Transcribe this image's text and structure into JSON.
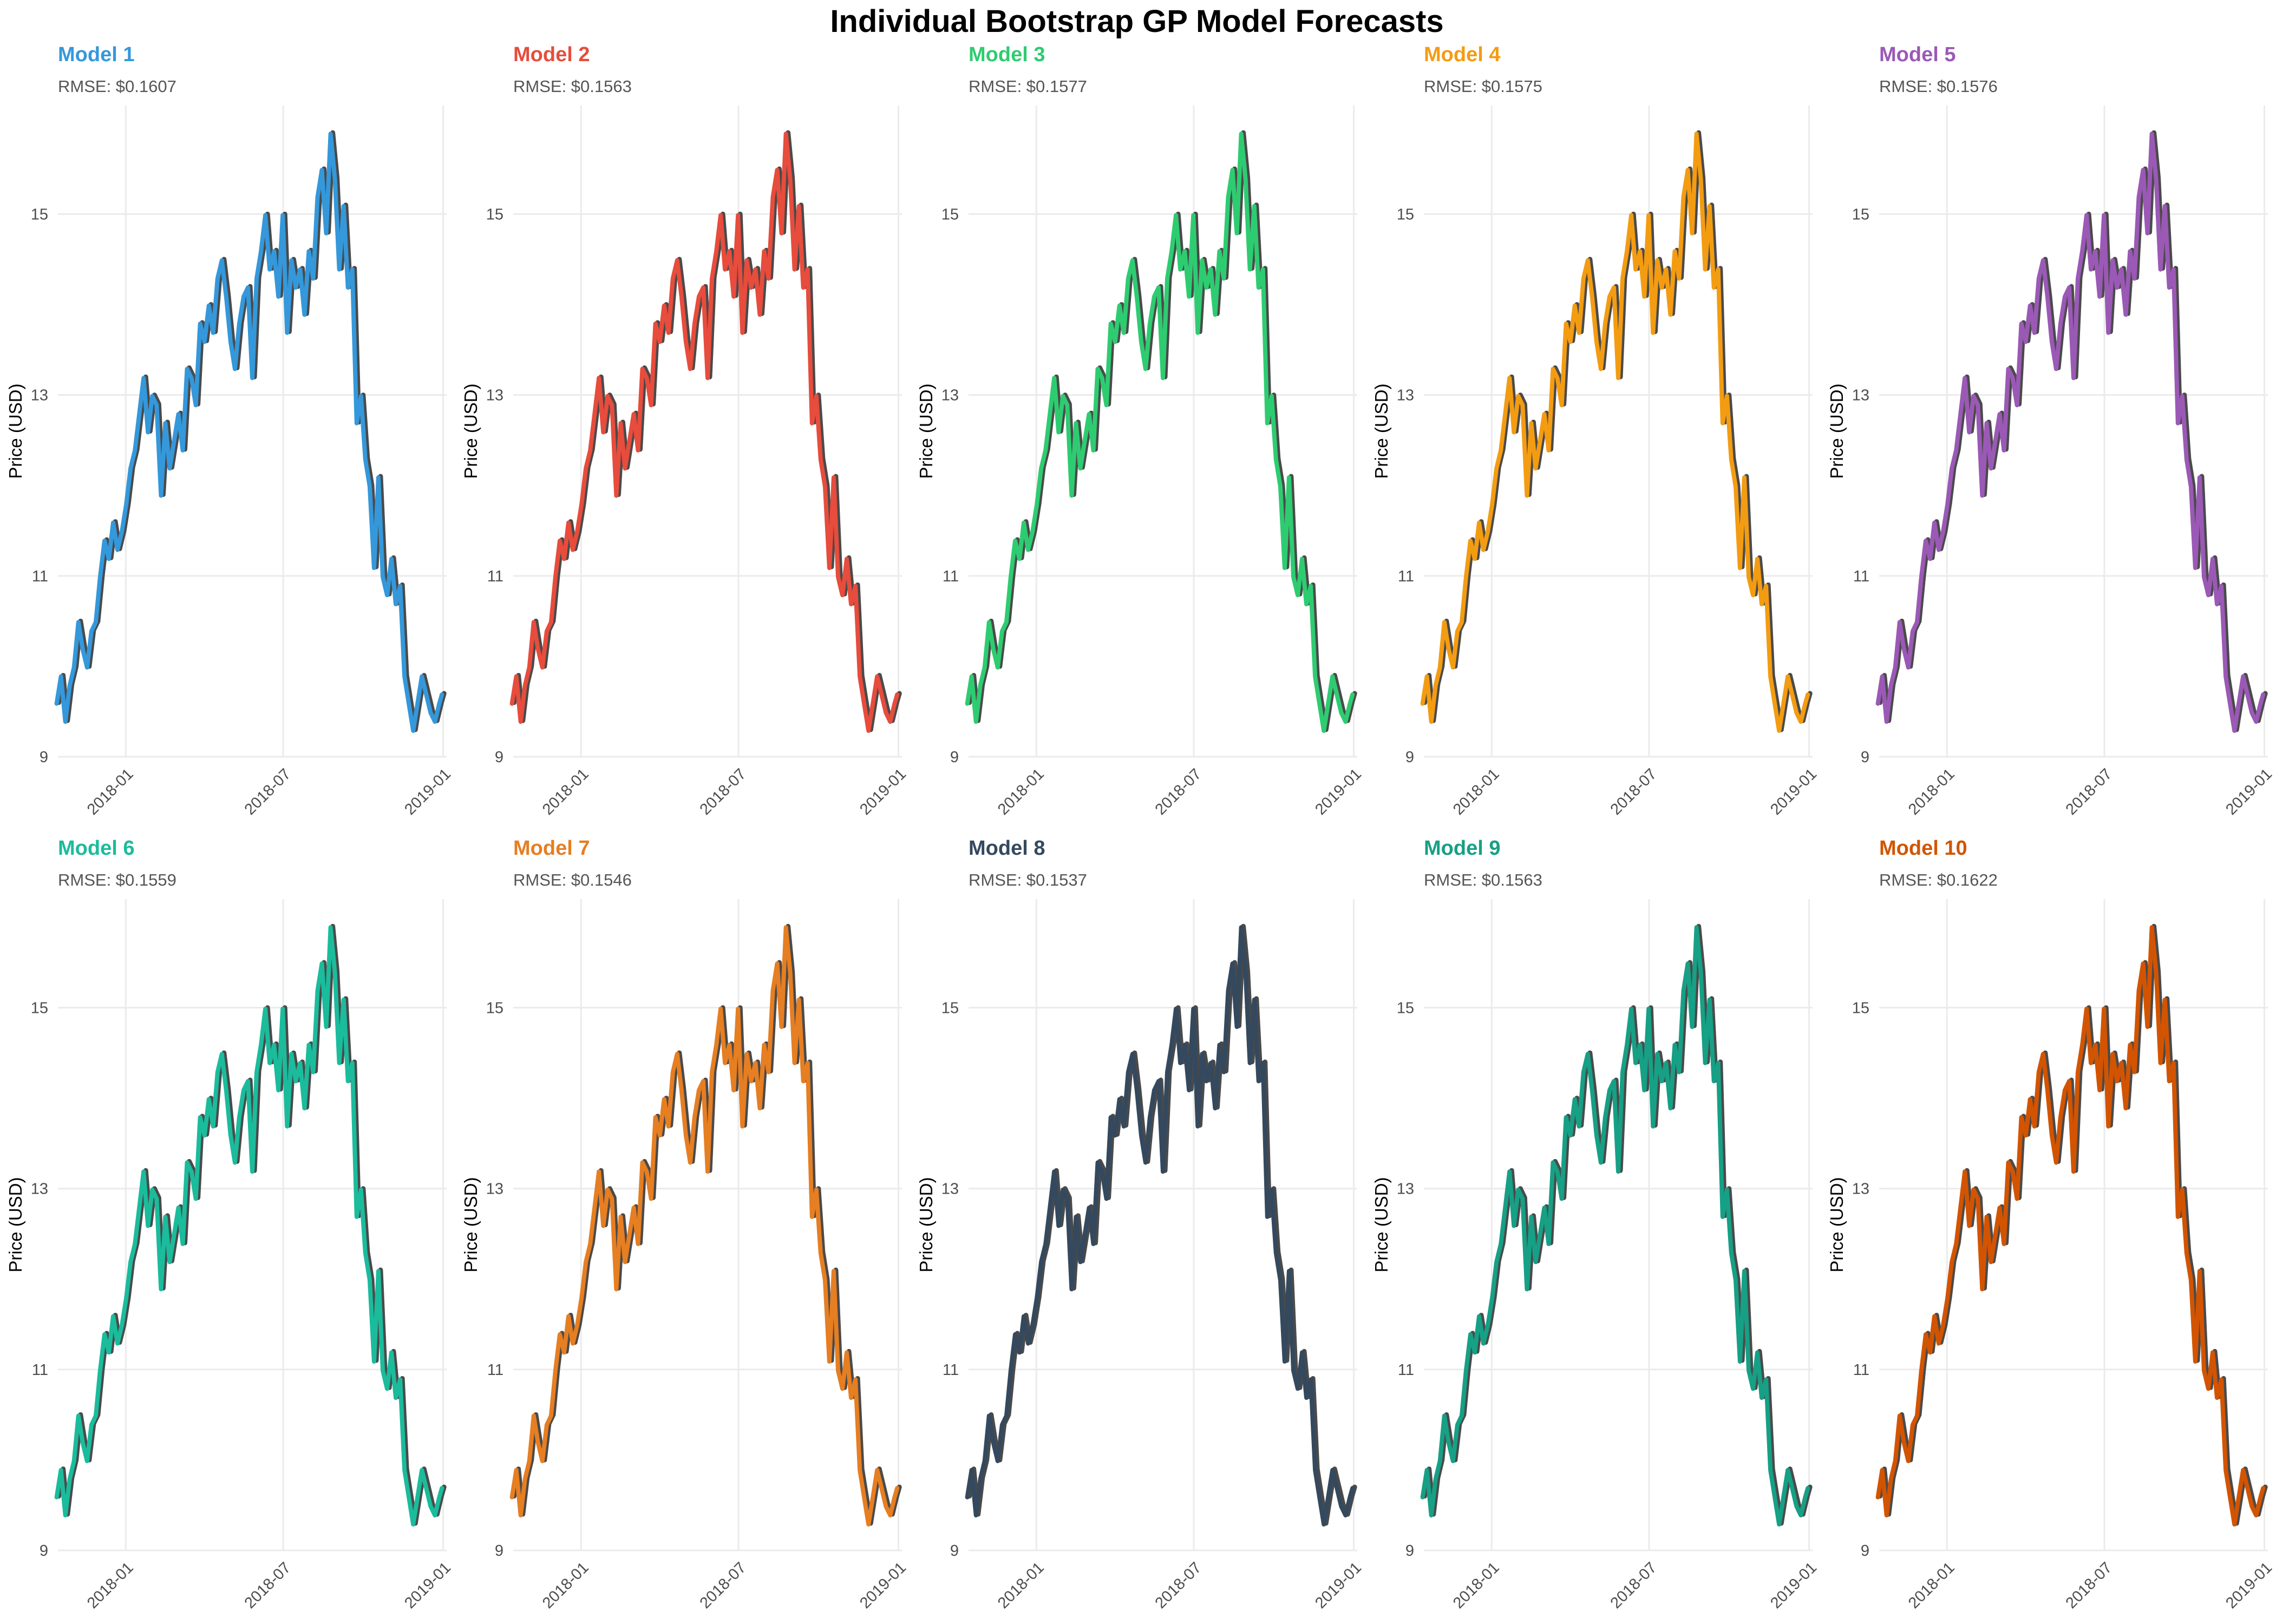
{
  "title": "Individual Bootstrap GP Model Forecasts",
  "actual_color": "#4a4a4a",
  "chart_data": {
    "type": "line",
    "ylabel": "Price (USD)",
    "xlabel": "",
    "x_tick_labels": [
      "2018-01",
      "2018-07",
      "2019-01"
    ],
    "x_ticks": [
      "2018-01-01",
      "2018-07-01",
      "2019-01-01"
    ],
    "xlim": [
      "2017-10-15",
      "2019-01-05"
    ],
    "y_ticks": [
      9,
      11,
      13,
      15
    ],
    "ylim": [
      9,
      16.2
    ],
    "grid": true,
    "actual_series": {
      "dates": [
        "2017-10-16",
        "2017-10-21",
        "2017-10-26",
        "2017-10-31",
        "2017-11-05",
        "2017-11-10",
        "2017-11-15",
        "2017-11-20",
        "2017-11-25",
        "2017-11-30",
        "2017-12-05",
        "2017-12-10",
        "2017-12-15",
        "2017-12-20",
        "2017-12-25",
        "2017-12-30",
        "2018-01-04",
        "2018-01-09",
        "2018-01-14",
        "2018-01-19",
        "2018-01-24",
        "2018-01-29",
        "2018-02-03",
        "2018-02-08",
        "2018-02-13",
        "2018-02-18",
        "2018-02-23",
        "2018-02-28",
        "2018-03-05",
        "2018-03-10",
        "2018-03-15",
        "2018-03-20",
        "2018-03-25",
        "2018-03-30",
        "2018-04-04",
        "2018-04-09",
        "2018-04-14",
        "2018-04-19",
        "2018-04-24",
        "2018-04-29",
        "2018-05-04",
        "2018-05-09",
        "2018-05-14",
        "2018-05-19",
        "2018-05-24",
        "2018-05-29",
        "2018-06-03",
        "2018-06-08",
        "2018-06-13",
        "2018-06-18",
        "2018-06-23",
        "2018-06-28",
        "2018-07-03",
        "2018-07-08",
        "2018-07-13",
        "2018-07-18",
        "2018-07-23",
        "2018-07-28",
        "2018-08-02",
        "2018-08-07",
        "2018-08-12",
        "2018-08-17",
        "2018-08-22",
        "2018-08-27",
        "2018-09-01",
        "2018-09-06",
        "2018-09-11",
        "2018-09-16",
        "2018-09-21",
        "2018-09-26",
        "2018-10-01",
        "2018-10-06",
        "2018-10-11",
        "2018-10-16",
        "2018-10-21",
        "2018-10-26",
        "2018-10-31",
        "2018-11-05",
        "2018-11-10",
        "2018-11-15",
        "2018-11-20",
        "2018-11-25",
        "2018-11-30",
        "2018-12-05",
        "2018-12-10",
        "2018-12-15",
        "2018-12-20",
        "2018-12-25",
        "2018-12-30",
        "2019-01-02"
      ],
      "values": [
        9.6,
        9.9,
        9.4,
        9.8,
        10.0,
        10.5,
        10.2,
        10.0,
        10.4,
        10.5,
        11.0,
        11.4,
        11.2,
        11.6,
        11.3,
        11.5,
        11.8,
        12.2,
        12.4,
        12.8,
        13.2,
        12.6,
        13.0,
        12.9,
        11.9,
        12.7,
        12.2,
        12.5,
        12.8,
        12.4,
        13.3,
        13.2,
        12.9,
        13.8,
        13.6,
        14.0,
        13.7,
        14.3,
        14.5,
        14.1,
        13.6,
        13.3,
        13.8,
        14.1,
        14.2,
        13.2,
        14.3,
        14.6,
        15.0,
        14.4,
        14.6,
        14.1,
        15.0,
        13.7,
        14.5,
        14.2,
        14.4,
        13.9,
        14.6,
        14.3,
        15.2,
        15.5,
        14.8,
        15.9,
        15.4,
        14.4,
        15.1,
        14.2,
        14.4,
        12.7,
        13.0,
        12.3,
        12.0,
        11.1,
        12.1,
        11.0,
        10.8,
        11.2,
        10.7,
        10.9,
        9.9,
        9.6,
        9.3,
        9.6,
        9.9,
        9.7,
        9.5,
        9.4,
        9.6,
        9.7
      ]
    },
    "models": [
      {
        "name": "Model 1",
        "rmse": "RMSE: $0.1607",
        "color": "#3498db"
      },
      {
        "name": "Model 2",
        "rmse": "RMSE: $0.1563",
        "color": "#e74c3c"
      },
      {
        "name": "Model 3",
        "rmse": "RMSE: $0.1577",
        "color": "#2ecc71"
      },
      {
        "name": "Model 4",
        "rmse": "RMSE: $0.1575",
        "color": "#f39c12"
      },
      {
        "name": "Model 5",
        "rmse": "RMSE: $0.1576",
        "color": "#9b59b6"
      },
      {
        "name": "Model 6",
        "rmse": "RMSE: $0.1559",
        "color": "#1abc9c"
      },
      {
        "name": "Model 7",
        "rmse": "RMSE: $0.1546",
        "color": "#e67e22"
      },
      {
        "name": "Model 8",
        "rmse": "RMSE: $0.1537",
        "color": "#34495e"
      },
      {
        "name": "Model 9",
        "rmse": "RMSE: $0.1563",
        "color": "#16a085"
      },
      {
        "name": "Model 10",
        "rmse": "RMSE: $0.1622",
        "color": "#d35400"
      }
    ]
  }
}
